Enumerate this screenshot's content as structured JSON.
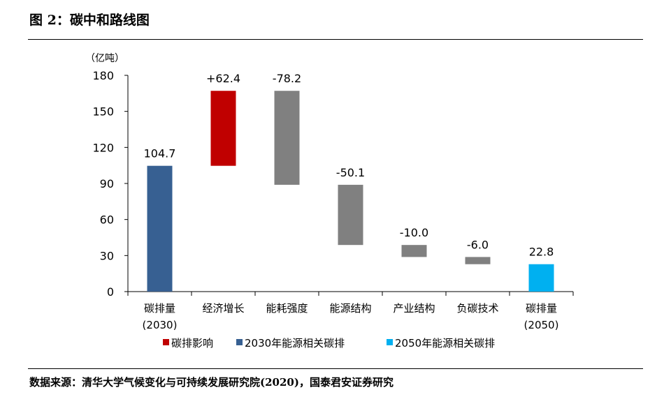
{
  "title": "图 2：碳中和路线图",
  "source": "数据来源：清华大学气候变化与可持续发展研究院(2020)，国泰君安证券研究",
  "chart_data": {
    "type": "bar",
    "subtype": "waterfall",
    "unit_label": "（亿吨）",
    "ylim": [
      0,
      180
    ],
    "yticks": [
      0,
      30,
      60,
      90,
      120,
      150,
      180
    ],
    "categories": [
      [
        "碳排量",
        "(2030)"
      ],
      [
        "经济增长"
      ],
      [
        "能耗强度"
      ],
      [
        "能源结构"
      ],
      [
        "产业结构"
      ],
      [
        "负碳技术"
      ],
      [
        "碳排量",
        "(2050)"
      ]
    ],
    "bars": [
      {
        "start": 0,
        "end": 104.7,
        "label": "104.7",
        "series": 1
      },
      {
        "start": 104.7,
        "end": 167.1,
        "label": "+62.4",
        "series": 0
      },
      {
        "start": 167.1,
        "end": 88.9,
        "label": "-78.2",
        "series": 3
      },
      {
        "start": 88.9,
        "end": 38.8,
        "label": "-50.1",
        "series": 3
      },
      {
        "start": 38.8,
        "end": 28.8,
        "label": "-10.0",
        "series": 3
      },
      {
        "start": 28.8,
        "end": 22.8,
        "label": "-6.0",
        "series": 3
      },
      {
        "start": 0,
        "end": 22.8,
        "label": "22.8",
        "series": 2
      }
    ],
    "series_colors": [
      "#C00000",
      "#376092",
      "#00B0F0",
      "#808080"
    ],
    "legend": [
      {
        "name": "碳排影响",
        "color": "#C00000"
      },
      {
        "name": "2030年能源相关碳排",
        "color": "#376092"
      },
      {
        "name": "2050年能源相关碳排",
        "color": "#00B0F0"
      }
    ],
    "legend_position": "bottom"
  }
}
